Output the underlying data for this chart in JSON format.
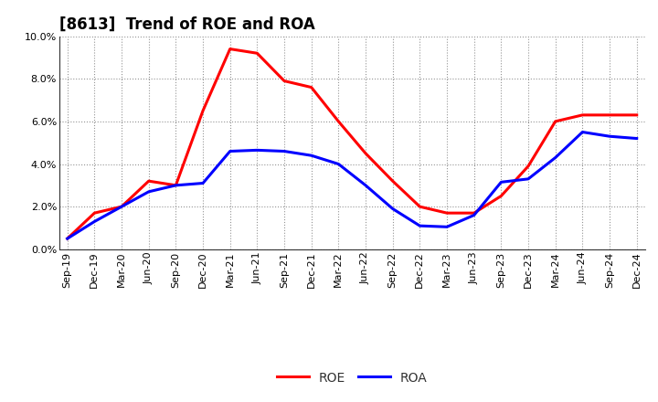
{
  "title": "[8613]  Trend of ROE and ROA",
  "x_labels": [
    "Sep-19",
    "Dec-19",
    "Mar-20",
    "Jun-20",
    "Sep-20",
    "Dec-20",
    "Mar-21",
    "Jun-21",
    "Sep-21",
    "Dec-21",
    "Mar-22",
    "Jun-22",
    "Sep-22",
    "Dec-22",
    "Mar-23",
    "Jun-23",
    "Sep-23",
    "Dec-23",
    "Mar-24",
    "Jun-24",
    "Sep-24",
    "Dec-24"
  ],
  "ROE": [
    0.5,
    1.7,
    2.0,
    3.2,
    3.0,
    6.5,
    9.4,
    9.2,
    7.9,
    7.6,
    6.0,
    4.5,
    3.2,
    2.0,
    1.7,
    1.7,
    2.5,
    3.9,
    6.0,
    6.3,
    6.3,
    6.3
  ],
  "ROA": [
    0.5,
    1.3,
    2.0,
    2.7,
    3.0,
    3.1,
    4.6,
    4.65,
    4.6,
    4.4,
    4.0,
    3.0,
    1.9,
    1.1,
    1.05,
    1.6,
    3.15,
    3.3,
    4.3,
    5.5,
    5.3,
    5.2
  ],
  "roe_color": "#ff0000",
  "roa_color": "#0000ff",
  "ylim": [
    0,
    10.0
  ],
  "yticks": [
    0.0,
    2.0,
    4.0,
    6.0,
    8.0,
    10.0
  ],
  "grid_color": "#888888",
  "background_color": "#ffffff",
  "line_width": 2.2,
  "title_fontsize": 12,
  "tick_fontsize": 8,
  "legend_fontsize": 10
}
